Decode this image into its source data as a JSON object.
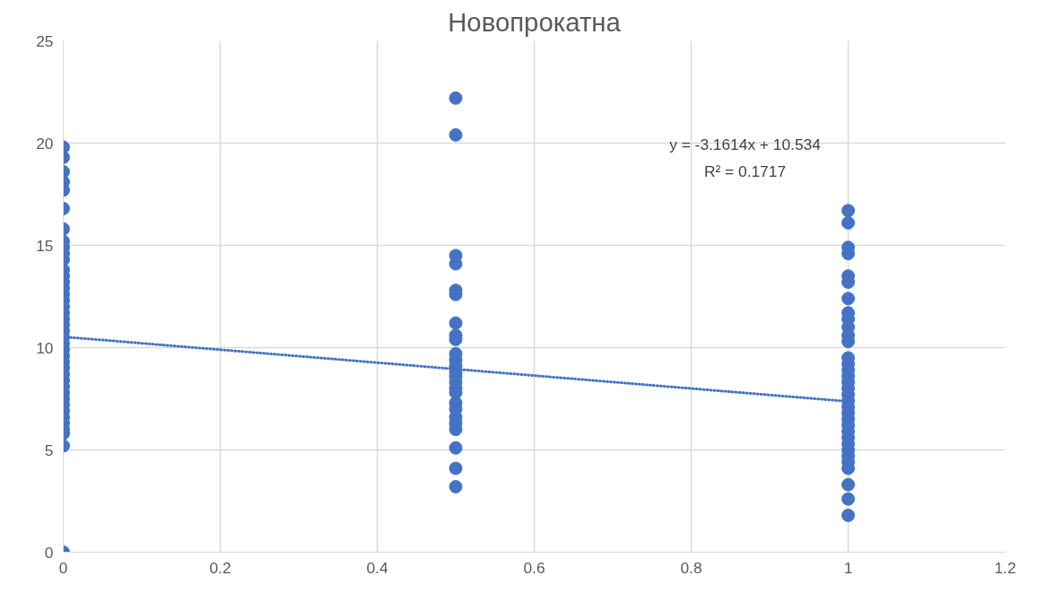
{
  "chart_data": {
    "type": "scatter",
    "title": "Новопрокатна",
    "series": [
      {
        "color": "#4472c4",
        "marker": "circle",
        "x": [
          0,
          0,
          0,
          0,
          0,
          0,
          0,
          0,
          0,
          0,
          0,
          0,
          0,
          0,
          0,
          0,
          0,
          0,
          0,
          0,
          0,
          0,
          0,
          0,
          0,
          0,
          0,
          0,
          0,
          0,
          0,
          0,
          0,
          0,
          0,
          0,
          0,
          0,
          0,
          0,
          0,
          0.5,
          0.5,
          0.5,
          0.5,
          0.5,
          0.5,
          0.5,
          0.5,
          0.5,
          0.5,
          0.5,
          0.5,
          0.5,
          0.5,
          0.5,
          0.5,
          0.5,
          0.5,
          0.5,
          0.5,
          0.5,
          0.5,
          0.5,
          0.5,
          0.5,
          1,
          1,
          1,
          1,
          1,
          1,
          1,
          1,
          1,
          1,
          1,
          1,
          1,
          1,
          1,
          1,
          1,
          1,
          1,
          1,
          1,
          1,
          1,
          1,
          1,
          1,
          1,
          1,
          1,
          1,
          1,
          1,
          1,
          1
        ],
        "values": [
          19.8,
          19.3,
          18.6,
          18.1,
          17.7,
          16.8,
          15.8,
          15.2,
          14.9,
          14.6,
          14.3,
          13.8,
          13.5,
          13.2,
          12.9,
          12.6,
          12.3,
          12.0,
          11.7,
          11.4,
          11.1,
          10.8,
          10.5,
          10.2,
          9.9,
          9.6,
          9.3,
          9.0,
          8.7,
          8.4,
          8.1,
          7.8,
          7.5,
          7.2,
          6.9,
          6.6,
          6.3,
          6.0,
          5.8,
          5.2,
          0,
          22.2,
          20.4,
          14.5,
          14.1,
          12.8,
          12.6,
          11.2,
          10.6,
          10.4,
          9.7,
          9.4,
          9.1,
          8.8,
          8.6,
          8.3,
          8.0,
          7.8,
          7.3,
          7.0,
          6.6,
          6.3,
          6.0,
          5.1,
          4.1,
          3.2,
          16.7,
          16.1,
          14.9,
          14.6,
          13.5,
          13.2,
          12.4,
          11.7,
          11.4,
          11.0,
          10.6,
          10.3,
          9.5,
          9.2,
          8.9,
          8.6,
          8.3,
          8.0,
          7.7,
          7.4,
          7.1,
          6.8,
          6.5,
          6.2,
          5.9,
          5.6,
          5.3,
          5.0,
          4.7,
          4.4,
          4.1,
          3.3,
          2.6,
          1.8
        ]
      },
      {
        "type": "line",
        "color": "#4472c4",
        "line_style": "dotted",
        "x": [
          0,
          1
        ],
        "values": [
          10.53,
          7.37
        ]
      }
    ],
    "annotations": [
      "y = -3.1614x + 10.534",
      "R² = 0.1717"
    ],
    "xlim": [
      0,
      1.2
    ],
    "xticks": [
      0,
      0.2,
      0.4,
      0.6,
      0.8,
      1,
      1.2
    ],
    "ylim": [
      0,
      25
    ],
    "yticks": [
      0,
      5,
      10,
      15,
      20,
      25
    ],
    "grid": true
  }
}
